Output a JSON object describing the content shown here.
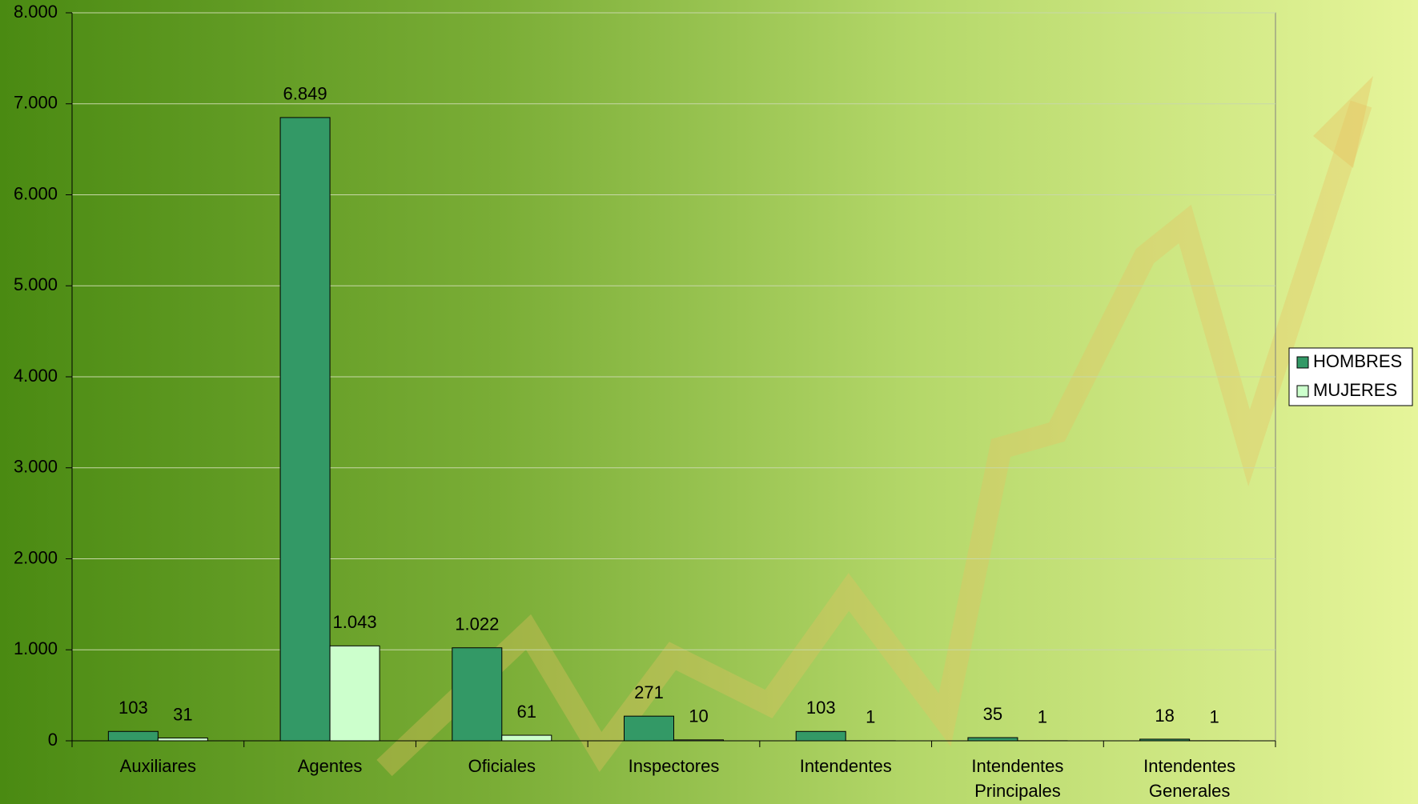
{
  "chart_data": {
    "type": "bar",
    "categories": [
      "Auxiliares",
      "Agentes",
      "Oficiales",
      "Inspectores",
      "Intendentes",
      "Intendentes Principales",
      "Intendentes Generales"
    ],
    "series": [
      {
        "name": "HOMBRES",
        "color": "#339966",
        "values": [
          103,
          6849,
          1022,
          271,
          103,
          35,
          18
        ],
        "value_labels": [
          "103",
          "6.849",
          "1.022",
          "271",
          "103",
          "35",
          "18"
        ]
      },
      {
        "name": "MUJERES",
        "color": "#ccffcc",
        "values": [
          31,
          1043,
          61,
          10,
          1,
          1,
          1
        ],
        "value_labels": [
          "31",
          "1.043",
          "61",
          "10",
          "1",
          "1",
          "1"
        ]
      }
    ],
    "ylim": [
      0,
      8000
    ],
    "yticks": [
      0,
      {
        "value": 1000,
        "label": "1.000"
      },
      {
        "value": 2000,
        "label": "2.000"
      },
      {
        "value": 3000,
        "label": "3.000"
      },
      {
        "value": 4000,
        "label": "4.000"
      },
      {
        "value": 5000,
        "label": "5.000"
      },
      {
        "value": 6000,
        "label": "6.000"
      },
      {
        "value": 7000,
        "label": "7.000"
      },
      {
        "value": 8000,
        "label": "8.000"
      }
    ],
    "grid": true,
    "legend": "right"
  }
}
